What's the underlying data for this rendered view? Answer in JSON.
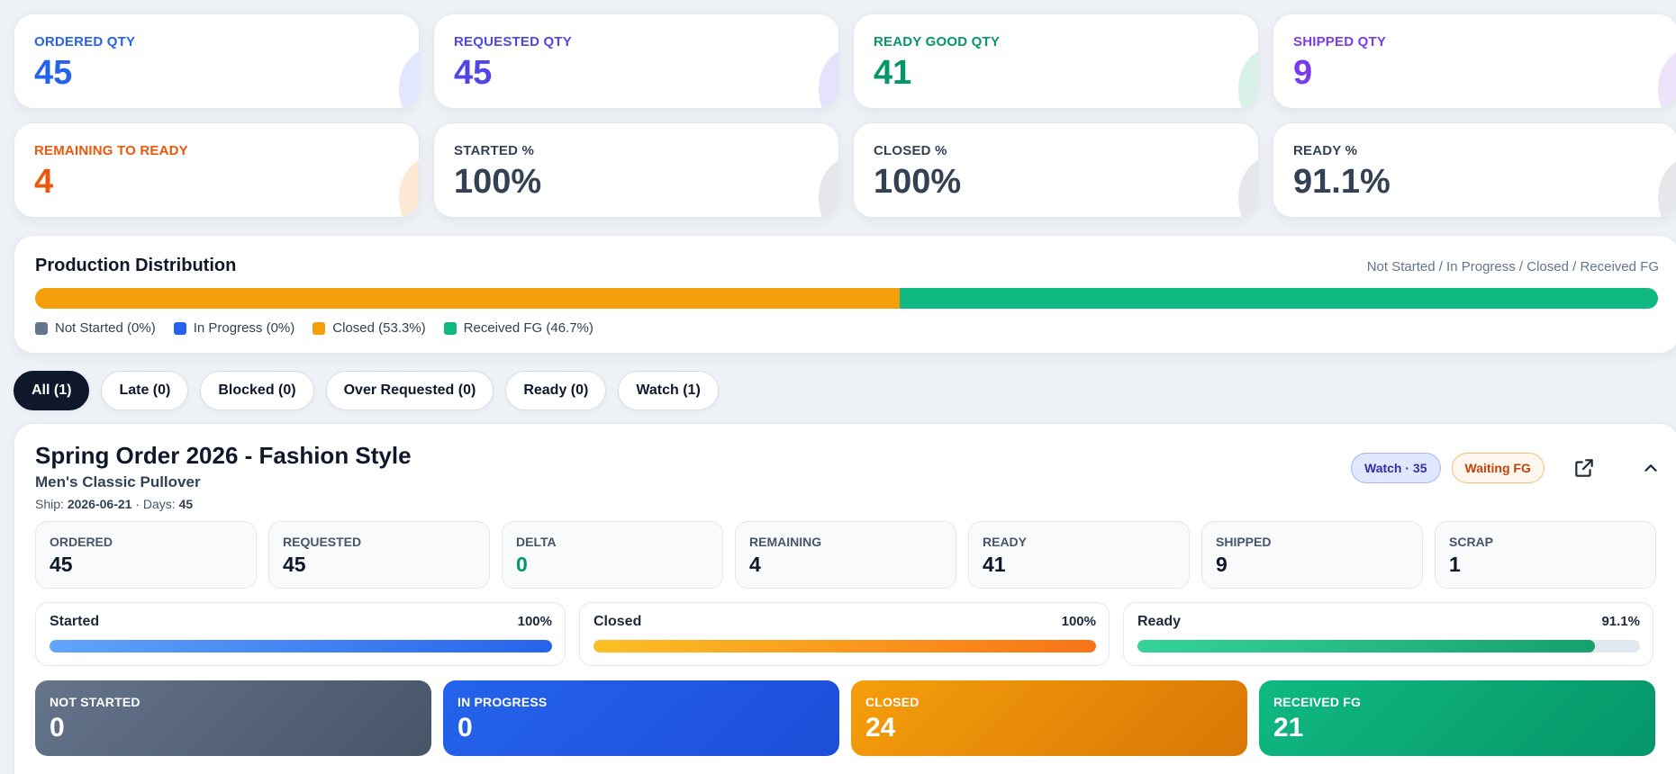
{
  "stats": [
    {
      "label": "ORDERED QTY",
      "value": "45",
      "color": "#2563eb",
      "deco": "#e0e7ff"
    },
    {
      "label": "REQUESTED QTY",
      "value": "45",
      "color": "#4f46e5",
      "deco": "#e5e2fb"
    },
    {
      "label": "READY GOOD QTY",
      "value": "41",
      "color": "#059669",
      "deco": "#d8f2e7"
    },
    {
      "label": "SHIPPED QTY",
      "value": "9",
      "color": "#7c3aed",
      "deco": "#ece3fb"
    },
    {
      "label": "REMAINING TO READY",
      "value": "4",
      "color": "#ea580c",
      "deco": "#fde8d4"
    },
    {
      "label": "STARTED %",
      "value": "100%",
      "color": "#334155",
      "deco": "#e5e7eb"
    },
    {
      "label": "CLOSED %",
      "value": "100%",
      "color": "#334155",
      "deco": "#e5e7eb"
    },
    {
      "label": "READY %",
      "value": "91.1%",
      "color": "#334155",
      "deco": "#e5e7eb"
    }
  ],
  "distribution": {
    "title": "Production Distribution",
    "hint": "Not Started / In Progress / Closed / Received FG",
    "segments": [
      {
        "label": "Not Started (0%)",
        "percent": 0,
        "color": "#64748b"
      },
      {
        "label": "In Progress (0%)",
        "percent": 0,
        "color": "#2563eb"
      },
      {
        "label": "Closed (53.3%)",
        "percent": 53.3,
        "color": "#f59e0b"
      },
      {
        "label": "Received FG (46.7%)",
        "percent": 46.7,
        "color": "#10b981"
      }
    ]
  },
  "filters": [
    {
      "label": "All (1)",
      "active": true
    },
    {
      "label": "Late (0)",
      "active": false
    },
    {
      "label": "Blocked (0)",
      "active": false
    },
    {
      "label": "Over Requested (0)",
      "active": false
    },
    {
      "label": "Ready (0)",
      "active": false
    },
    {
      "label": "Watch (1)",
      "active": false
    }
  ],
  "order": {
    "title": "Spring Order 2026 - Fashion Style",
    "product": "Men's Classic Pullover",
    "ship_prefix": "Ship:",
    "ship_date": "2026-06-21",
    "days_prefix": "· Days:",
    "days": "45",
    "badge_watch": "Watch · 35",
    "badge_waiting": "Waiting FG",
    "metrics": [
      {
        "label": "ORDERED",
        "value": "45",
        "color": "#0f172a"
      },
      {
        "label": "REQUESTED",
        "value": "45",
        "color": "#0f172a"
      },
      {
        "label": "DELTA",
        "value": "0",
        "color": "#059669"
      },
      {
        "label": "REMAINING",
        "value": "4",
        "color": "#0f172a"
      },
      {
        "label": "READY",
        "value": "41",
        "color": "#0f172a"
      },
      {
        "label": "SHIPPED",
        "value": "9",
        "color": "#0f172a"
      },
      {
        "label": "SCRAP",
        "value": "1",
        "color": "#0f172a"
      }
    ],
    "progress": [
      {
        "label": "Started",
        "value": "100%",
        "fraction": 1.0,
        "gradient": "linear-gradient(90deg,#60a5fa,#2563eb)"
      },
      {
        "label": "Closed",
        "value": "100%",
        "fraction": 1.0,
        "gradient": "linear-gradient(90deg,#fbbf24,#f97316)"
      },
      {
        "label": "Ready",
        "value": "91.1%",
        "fraction": 0.911,
        "gradient": "linear-gradient(90deg,#34d399,#16a06e)"
      }
    ],
    "status_cards": [
      {
        "label": "NOT STARTED",
        "value": "0",
        "gradient": "linear-gradient(135deg,#64748b,#475569)"
      },
      {
        "label": "IN PROGRESS",
        "value": "0",
        "gradient": "linear-gradient(135deg,#2563eb,#1d4ed8)"
      },
      {
        "label": "CLOSED",
        "value": "24",
        "gradient": "linear-gradient(135deg,#f59e0b,#d97706)"
      },
      {
        "label": "RECEIVED FG",
        "value": "21",
        "gradient": "linear-gradient(135deg,#10b981,#059669)"
      }
    ]
  }
}
